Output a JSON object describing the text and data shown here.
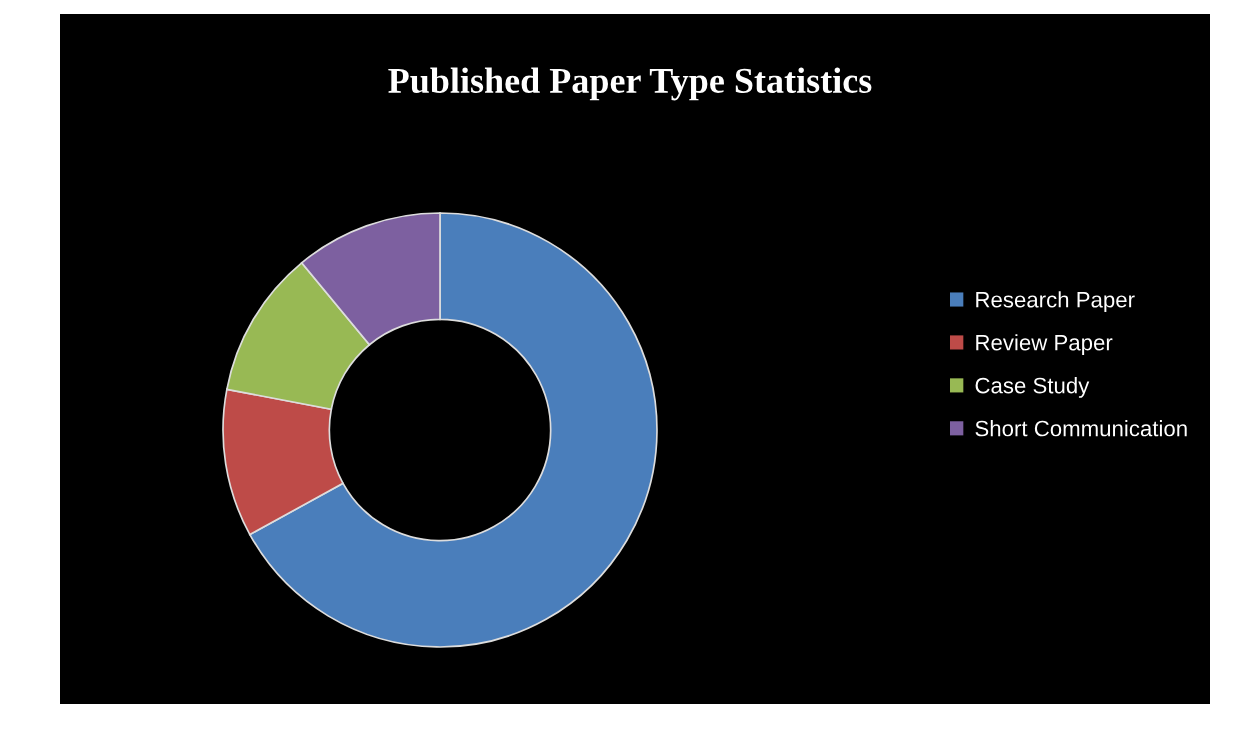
{
  "chart_data": {
    "type": "donut",
    "title": "Published Paper Type Statistics",
    "categories": [
      "Research Paper",
      "Review Paper",
      "Case Study",
      "Short Communication"
    ],
    "values": [
      67,
      11,
      11,
      11
    ],
    "colors": [
      "#4a7ebb",
      "#be4b48",
      "#98b954",
      "#7d60a0"
    ],
    "legend": "right"
  }
}
